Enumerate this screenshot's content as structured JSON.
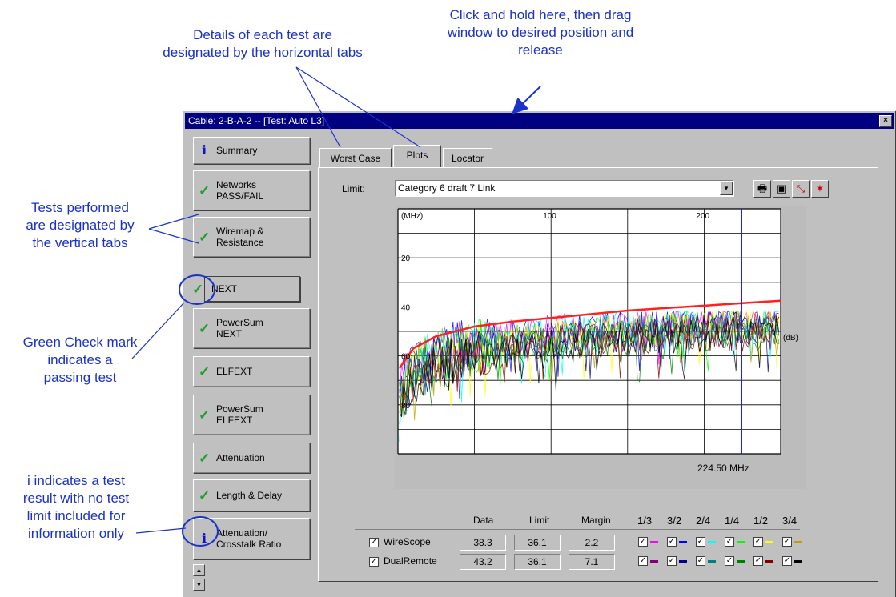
{
  "annotations": {
    "drag": [
      "Click and hold here, then drag",
      "window to desired position and",
      "release"
    ],
    "horizontal_tabs": [
      "Details of each test are",
      "designated by the horizontal tabs"
    ],
    "vertical_tabs": [
      "Tests performed",
      "are designated by",
      "the vertical tabs"
    ],
    "green_check": [
      "Green Check mark",
      "indicates a",
      "passing test"
    ],
    "info_icon": [
      "i  indicates a test",
      "result with no test",
      "limit included for",
      "information only"
    ]
  },
  "window": {
    "title": "Cable: 2-B-A-2 -- [Test: Auto L3]",
    "close_label": "×"
  },
  "vertical_tabs": [
    {
      "label": "Summary",
      "icon": "info-icon"
    },
    {
      "label": "Networks\nPASS/FAIL",
      "icon": "check-icon"
    },
    {
      "label": "Wiremap &\nResistance",
      "icon": "check-icon"
    },
    {
      "label": "NEXT",
      "icon": "check-icon",
      "active": true
    },
    {
      "label": "PowerSum\nNEXT",
      "icon": "check-icon"
    },
    {
      "label": "ELFEXT",
      "icon": "check-icon"
    },
    {
      "label": "PowerSum\nELFEXT",
      "icon": "check-icon"
    },
    {
      "label": "Attenuation",
      "icon": "check-icon"
    },
    {
      "label": "Length & Delay",
      "icon": "check-icon"
    },
    {
      "label": "Attenuation/\nCrosstalk Ratio",
      "icon": "info-icon"
    }
  ],
  "horizontal_tabs": [
    "Worst Case",
    "Plots",
    "Locator"
  ],
  "active_htab": "Plots",
  "limit": {
    "label": "Limit:",
    "value": "Category 6 draft 7 Link"
  },
  "toolbar_icons": [
    "printer-icon",
    "save-icon",
    "zoom-plot-icon",
    "chart-icon"
  ],
  "plot": {
    "unit_mhz": "(MHz)",
    "unit_db": "(dB)",
    "x_ticks": [
      "100",
      "200"
    ],
    "y_ticks": [
      "20",
      "40",
      "60",
      "80"
    ],
    "marker_readout": "224.50 MHz"
  },
  "chart_data": {
    "type": "line",
    "xlabel": "(MHz)",
    "ylabel": "(dB)",
    "xlim": [
      0,
      250
    ],
    "ylim": [
      0,
      100
    ],
    "y_inverted": true,
    "marker_x": 224.5,
    "limit_line": {
      "color": "#ff2020",
      "x": [
        1,
        10,
        25,
        50,
        75,
        100,
        125,
        150,
        175,
        200,
        225,
        250
      ],
      "y": [
        65,
        57,
        52,
        48,
        46,
        44.5,
        43,
        41.5,
        40.5,
        39.5,
        38.5,
        37.5
      ]
    }
  },
  "results": {
    "headers": [
      "Data",
      "Limit",
      "Margin"
    ],
    "pair_headers": [
      "1/3",
      "3/2",
      "2/4",
      "1/4",
      "1/2",
      "3/4"
    ],
    "rows": [
      {
        "name": "WireScope",
        "data": "38.3",
        "limit": "36.1",
        "margin": "2.2",
        "colors": [
          "#ff00ff",
          "#0000ff",
          "#00ffff",
          "#00ff00",
          "#ffff00",
          "#c0a000"
        ]
      },
      {
        "name": "DualRemote",
        "data": "43.2",
        "limit": "36.1",
        "margin": "7.1",
        "colors": [
          "#800080",
          "#000080",
          "#008080",
          "#008000",
          "#800000",
          "#000000"
        ]
      }
    ]
  },
  "checkbox_glyph": "✓"
}
